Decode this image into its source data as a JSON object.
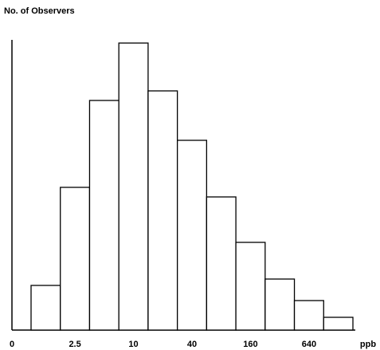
{
  "chart_data": {
    "type": "bar",
    "y_label": "No. of Observers",
    "x_label": "ppb",
    "x_origin_label": "0",
    "categories": [
      null,
      "2.5",
      null,
      "10",
      null,
      "40",
      null,
      "160",
      null,
      "640",
      null
    ],
    "values": [
      56,
      179,
      288,
      360,
      300,
      238,
      167,
      110,
      64,
      37,
      16
    ],
    "color": "#ffffff",
    "ylim": [
      0,
      364
    ]
  }
}
